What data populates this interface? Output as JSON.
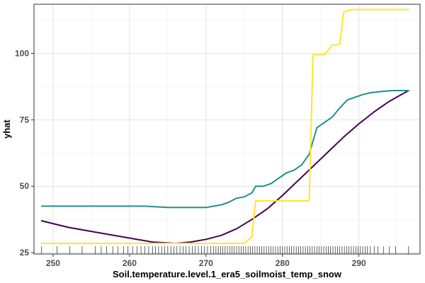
{
  "chart_data": {
    "type": "line",
    "title": "",
    "xlabel": "Soil.temperature.level.1_era5_soilmoist_temp_snow",
    "ylabel": "yhat",
    "xlim": [
      247.5,
      298.0
    ],
    "ylim": [
      24.5,
      118.5
    ],
    "x_ticks": [
      250,
      260,
      270,
      280,
      290
    ],
    "y_ticks": [
      25,
      50,
      75,
      100
    ],
    "grid": true,
    "legend": "none",
    "series": [
      {
        "color": "#440154",
        "x": [
          248.5,
          252,
          256,
          260,
          263,
          266,
          268,
          270,
          272,
          274,
          276,
          278,
          280,
          282,
          284,
          286,
          288,
          290,
          292,
          294,
          296.5
        ],
        "y": [
          37,
          34.5,
          32.5,
          30.5,
          29,
          28.5,
          29,
          30,
          31.5,
          34,
          37.5,
          41.5,
          46.5,
          52,
          57.5,
          63,
          68.5,
          73.5,
          78,
          82,
          86
        ]
      },
      {
        "color": "#21908C",
        "x": [
          248.5,
          255,
          262,
          265,
          270,
          271,
          272,
          273,
          274,
          275,
          276,
          276.5,
          277.5,
          278.5,
          279.5,
          280.5,
          281.5,
          282.5,
          283.5,
          284.5,
          285.5,
          286.5,
          287.5,
          288.5,
          289.5,
          290.5,
          291.5,
          292.5,
          293.5,
          294.5,
          295.5,
          296.5
        ],
        "y": [
          42.5,
          42.5,
          42.5,
          42,
          42,
          42.5,
          43,
          44,
          45.5,
          46,
          47.5,
          50,
          50,
          51,
          53,
          55,
          56,
          58,
          62,
          72,
          74,
          76,
          79.5,
          82.5,
          83.5,
          84.5,
          85.2,
          85.5,
          85.8,
          86,
          86,
          86
        ]
      },
      {
        "color": "#FDE725",
        "x": [
          248.5,
          260,
          270,
          275,
          276,
          276.5,
          278,
          282,
          283.5,
          284,
          285.5,
          286.5,
          287.5,
          288,
          289,
          290,
          296.5
        ],
        "y": [
          28.5,
          28.5,
          28.5,
          28.5,
          31,
          44.5,
          44.5,
          44.5,
          44.5,
          99.5,
          99.5,
          103,
          103.5,
          115.5,
          116.5,
          116.5,
          116.5
        ]
      }
    ],
    "rug_x": [
      248.5,
      250.5,
      252.2,
      253.8,
      255.5,
      256.3,
      257.0,
      257.8,
      258.5,
      259.2,
      259.8,
      260.4,
      261.0,
      261.5,
      262.0,
      262.5,
      263.0,
      263.4,
      263.8,
      264.2,
      264.6,
      265.0,
      265.4,
      265.8,
      266.2,
      266.6,
      267.0,
      267.4,
      267.8,
      268.2,
      268.6,
      269.0,
      269.4,
      269.8,
      270.2,
      270.6,
      271.0,
      271.3,
      271.6,
      271.9,
      272.2,
      272.5,
      272.8,
      273.1,
      273.4,
      273.7,
      274.0,
      274.3,
      274.6,
      274.9,
      275.2,
      275.5,
      275.8,
      276.1,
      276.4,
      276.7,
      277.0,
      277.3,
      277.6,
      277.9,
      278.2,
      278.5,
      278.8,
      279.1,
      279.4,
      279.7,
      280.0,
      280.3,
      280.6,
      280.9,
      281.2,
      281.5,
      281.8,
      282.1,
      282.4,
      282.7,
      283.0,
      283.3,
      283.6,
      283.9,
      284.2,
      284.5,
      284.8,
      285.1,
      285.4,
      285.7,
      286.0,
      286.3,
      286.6,
      286.9,
      287.2,
      287.5,
      287.8,
      288.1,
      288.4,
      288.7,
      289.0,
      289.3,
      289.6,
      289.9,
      290.2,
      290.5,
      290.8,
      291.1,
      291.5,
      292.0,
      292.5,
      293.2,
      294.0,
      294.8,
      296.5
    ]
  }
}
